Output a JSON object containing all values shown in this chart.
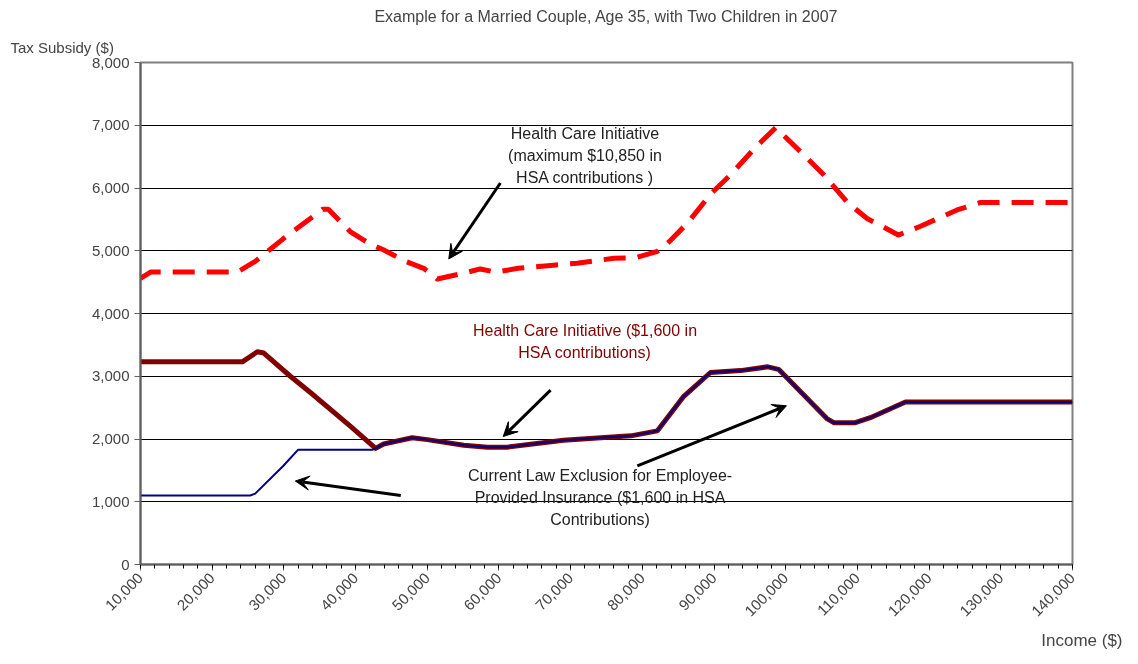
{
  "chart_data": {
    "type": "line",
    "title": "Example for a Married Couple, Age 35, with Two Children in 2007",
    "xlabel": "Income ($)",
    "ylabel": "Tax Subsidy ($)",
    "xlim": [
      10000,
      140000
    ],
    "xticks": [
      {
        "value": 10000,
        "label": "10,000"
      },
      {
        "value": 20000,
        "label": "20,000"
      },
      {
        "value": 30000,
        "label": "30,000"
      },
      {
        "value": 40000,
        "label": "40,000"
      },
      {
        "value": 50000,
        "label": "50,000"
      },
      {
        "value": 60000,
        "label": "60,000"
      },
      {
        "value": 70000,
        "label": "70,000"
      },
      {
        "value": 80000,
        "label": "80,000"
      },
      {
        "value": 90000,
        "label": "90,000"
      },
      {
        "value": 100000,
        "label": "100,000"
      },
      {
        "value": 110000,
        "label": "110,000"
      },
      {
        "value": 120000,
        "label": "120,000"
      },
      {
        "value": 130000,
        "label": "130,000"
      },
      {
        "value": 140000,
        "label": "140,000"
      }
    ],
    "ylim": [
      0,
      8000
    ],
    "yticks": [
      0,
      {
        "value": 1000,
        "label": "1,000"
      },
      {
        "value": 2000,
        "label": "2,000"
      },
      {
        "value": 3000,
        "label": "3,000"
      },
      {
        "value": 4000,
        "label": "4,000"
      },
      {
        "value": 5000,
        "label": "5,000"
      },
      {
        "value": 6000,
        "label": "6,000"
      },
      {
        "value": 7000,
        "label": "7,000"
      },
      {
        "value": 8000,
        "label": "8,000"
      }
    ],
    "grid": "y",
    "legend": false,
    "marker": "none",
    "series": [
      {
        "name": "Health Care Initiative (maximum $10,850 in HSA contributions )",
        "color": "#ff0000",
        "line_style": "dashed",
        "x": [
          10000,
          11400,
          23500,
          26000,
          29900,
          32700,
          35400,
          36200,
          39300,
          42100,
          43800,
          47000,
          49500,
          51400,
          54600,
          57400,
          59500,
          62700,
          67600,
          70900,
          76000,
          79100,
          82100,
          83700,
          86300,
          89500,
          92300,
          95800,
          98600,
          102500,
          105300,
          108600,
          111400,
          113600,
          115700,
          118800,
          123900,
          127200,
          140000
        ],
        "values": [
          4560,
          4660,
          4660,
          4830,
          5190,
          5430,
          5660,
          5660,
          5300,
          5100,
          5020,
          4830,
          4720,
          4550,
          4630,
          4710,
          4660,
          4720,
          4770,
          4800,
          4880,
          4890,
          4990,
          5140,
          5440,
          5900,
          6210,
          6650,
          6960,
          6530,
          6210,
          5770,
          5510,
          5380,
          5250,
          5390,
          5650,
          5770,
          5770
        ]
      },
      {
        "name": "Health Care Initiative ($1,600 in HSA contributions)",
        "color": "#800000",
        "line_style": "solid",
        "x": [
          10000,
          24200,
          26300,
          27200,
          30900,
          33700,
          39300,
          42800,
          43900,
          47900,
          50000,
          55100,
          58400,
          61200,
          69000,
          78400,
          82100,
          85700,
          89500,
          93700,
          97500,
          99000,
          105800,
          106700,
          109700,
          111800,
          116700,
          140000
        ],
        "values": [
          3230,
          3230,
          3390,
          3370,
          3000,
          2740,
          2200,
          1850,
          1920,
          2020,
          1990,
          1900,
          1870,
          1870,
          1980,
          2050,
          2130,
          2670,
          3060,
          3090,
          3150,
          3110,
          2320,
          2260,
          2260,
          2340,
          2590,
          2590
        ]
      },
      {
        "name": "Current Law Exclusion for Employee-Provided Insurance ($1,600 in HSA Contributions)",
        "color": "#000080",
        "line_style": "solid",
        "x": [
          10000,
          25300,
          26000,
          29900,
          32000,
          42400,
          42800,
          43900,
          47900,
          50000,
          55100,
          58400,
          61200,
          69000,
          78400,
          82100,
          85700,
          89500,
          93700,
          97500,
          99000,
          105800,
          106700,
          109700,
          111800,
          116700,
          140000
        ],
        "values": [
          1100,
          1100,
          1130,
          1570,
          1830,
          1830,
          1850,
          1920,
          2020,
          1990,
          1900,
          1870,
          1870,
          1980,
          2050,
          2130,
          2670,
          3060,
          3090,
          3150,
          3110,
          2320,
          2260,
          2260,
          2340,
          2590,
          2590
        ]
      }
    ]
  }
}
